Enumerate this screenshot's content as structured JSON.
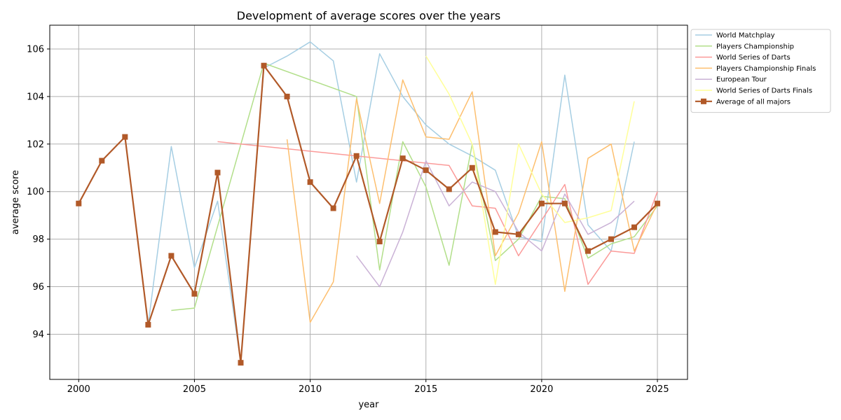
{
  "chart_data": {
    "type": "line",
    "title": "Development of average scores over the years",
    "xlabel": "year",
    "ylabel": "average score",
    "xlim": [
      1998.75,
      2026.3
    ],
    "ylim": [
      92.1,
      107.0
    ],
    "xticks": [
      2000,
      2005,
      2010,
      2015,
      2020,
      2025
    ],
    "yticks": [
      94,
      96,
      98,
      100,
      102,
      104,
      106
    ],
    "grid": true,
    "legend_position": "outside-right-top",
    "series": [
      {
        "name": "World Matchplay",
        "color": "#a6cee3",
        "points": [
          [
            2003,
            94.4
          ],
          [
            2004,
            101.9
          ],
          [
            2005,
            96.8
          ],
          [
            2006,
            99.6
          ],
          [
            2007,
            92.8
          ],
          [
            2008,
            105.2
          ],
          [
            2009,
            105.7
          ],
          [
            2010,
            106.3
          ],
          [
            2011,
            105.5
          ],
          [
            2012,
            100.4
          ],
          [
            2013,
            105.8
          ],
          [
            2014,
            104.0
          ],
          [
            2015,
            102.8
          ],
          [
            2016,
            102.0
          ],
          [
            2017,
            101.5
          ],
          [
            2018,
            100.9
          ],
          [
            2019,
            98.1
          ],
          [
            2020,
            97.9
          ],
          [
            2021,
            104.9
          ],
          [
            2022,
            98.6
          ],
          [
            2023,
            97.5
          ],
          [
            2024,
            102.1
          ]
        ]
      },
      {
        "name": "Players Championship",
        "color": "#b2df8a",
        "points": [
          [
            2004,
            95.0
          ],
          [
            2005,
            95.1
          ],
          [
            2008,
            105.4
          ],
          [
            2012,
            104.0
          ],
          [
            2013,
            96.7
          ],
          [
            2014,
            102.1
          ],
          [
            2015,
            100.2
          ],
          [
            2016,
            96.9
          ],
          [
            2017,
            102.0
          ],
          [
            2018,
            97.1
          ],
          [
            2019,
            98.0
          ],
          [
            2020,
            99.8
          ],
          [
            2021,
            99.7
          ],
          [
            2022,
            97.2
          ],
          [
            2023,
            97.8
          ],
          [
            2024,
            98.1
          ],
          [
            2025,
            99.4
          ]
        ]
      },
      {
        "name": "World Series of Darts",
        "color": "#fb9a99",
        "points": [
          [
            2006,
            102.1
          ],
          [
            2016,
            101.1
          ],
          [
            2017,
            99.4
          ],
          [
            2018,
            99.3
          ],
          [
            2019,
            97.3
          ],
          [
            2020,
            98.8
          ],
          [
            2021,
            100.3
          ],
          [
            2022,
            96.1
          ],
          [
            2023,
            97.5
          ],
          [
            2024,
            97.4
          ],
          [
            2025,
            100.0
          ]
        ]
      },
      {
        "name": "Players Championship Finals",
        "color": "#fdbf6f",
        "points": [
          [
            2009,
            102.2
          ],
          [
            2010,
            94.5
          ],
          [
            2011,
            96.2
          ],
          [
            2012,
            103.9
          ],
          [
            2013,
            99.5
          ],
          [
            2014,
            104.7
          ],
          [
            2015,
            102.3
          ],
          [
            2016,
            102.2
          ],
          [
            2017,
            104.2
          ],
          [
            2018,
            97.3
          ],
          [
            2019,
            99.1
          ],
          [
            2020,
            102.1
          ],
          [
            2021,
            95.8
          ],
          [
            2022,
            101.4
          ],
          [
            2023,
            102.0
          ],
          [
            2024,
            97.5
          ],
          [
            2025,
            99.5
          ]
        ]
      },
      {
        "name": "European Tour",
        "color": "#cab2d6",
        "points": [
          [
            2012,
            97.3
          ],
          [
            2013,
            96.0
          ],
          [
            2014,
            98.3
          ],
          [
            2015,
            101.3
          ],
          [
            2016,
            99.4
          ],
          [
            2017,
            100.4
          ],
          [
            2018,
            100.0
          ],
          [
            2019,
            98.3
          ],
          [
            2020,
            97.5
          ],
          [
            2021,
            99.9
          ],
          [
            2022,
            98.2
          ],
          [
            2023,
            98.7
          ],
          [
            2024,
            99.6
          ]
        ]
      },
      {
        "name": "World Series of Darts Finals",
        "color": "#ffff99",
        "points": [
          [
            2015,
            105.7
          ],
          [
            2016,
            104.1
          ],
          [
            2017,
            102.0
          ],
          [
            2018,
            96.1
          ],
          [
            2019,
            102.0
          ],
          [
            2020,
            99.9
          ],
          [
            2021,
            98.7
          ],
          [
            2022,
            98.9
          ],
          [
            2023,
            99.2
          ],
          [
            2024,
            103.8
          ]
        ]
      },
      {
        "name": "Average of all majors",
        "color": "#b15928",
        "marker": "square",
        "points": [
          [
            2000,
            99.5
          ],
          [
            2001,
            101.3
          ],
          [
            2002,
            102.3
          ],
          [
            2003,
            94.4
          ],
          [
            2004,
            97.3
          ],
          [
            2005,
            95.7
          ],
          [
            2006,
            100.8
          ],
          [
            2007,
            92.8
          ],
          [
            2008,
            105.3
          ],
          [
            2009,
            104.0
          ],
          [
            2010,
            100.4
          ],
          [
            2011,
            99.3
          ],
          [
            2012,
            101.5
          ],
          [
            2013,
            97.9
          ],
          [
            2014,
            101.4
          ],
          [
            2015,
            100.9
          ],
          [
            2016,
            100.1
          ],
          [
            2017,
            101.0
          ],
          [
            2018,
            98.3
          ],
          [
            2019,
            98.2
          ],
          [
            2020,
            99.5
          ],
          [
            2021,
            99.5
          ],
          [
            2022,
            97.5
          ],
          [
            2023,
            98.0
          ],
          [
            2024,
            98.5
          ],
          [
            2025,
            99.5
          ]
        ]
      }
    ]
  }
}
